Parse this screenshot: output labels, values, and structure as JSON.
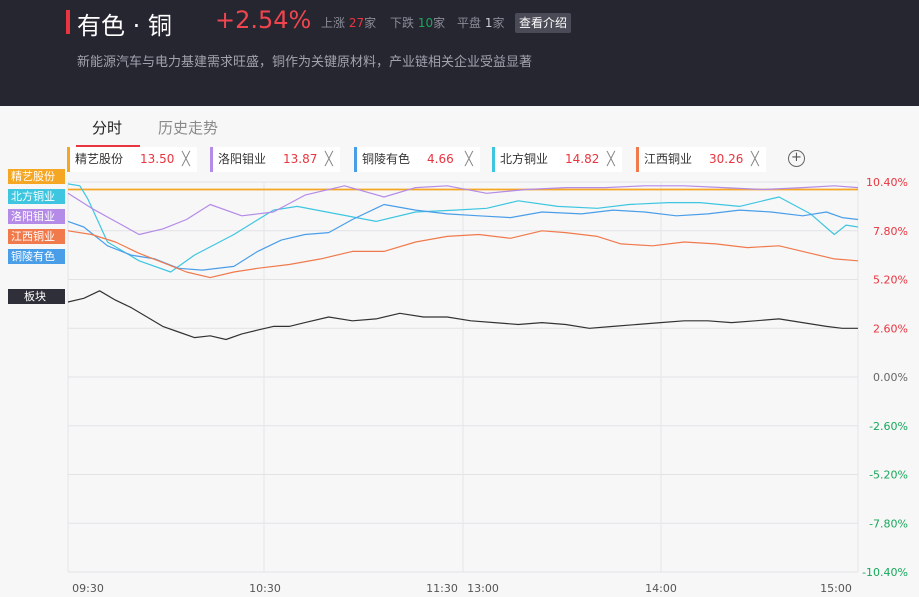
{
  "header": {
    "board_name": "有色 · 铜",
    "change": "+2.54%",
    "up_label": "上涨",
    "up_count": "27",
    "down_label": "下跌",
    "down_count": "10",
    "flat_label": "平盘",
    "flat_count": "1",
    "unit": "家",
    "intro_button": "查看介绍",
    "description": "新能源汽车与电力基建需求旺盛，铜作为关键原材料，产业链相关企业受益显著"
  },
  "tabs": [
    {
      "label": "分时",
      "active": true
    },
    {
      "label": "历史走势",
      "active": false
    }
  ],
  "stock_chips": [
    {
      "name": "精艺股份",
      "price": "13.50",
      "color": "#f5a623"
    },
    {
      "name": "洛阳钼业",
      "price": "13.87",
      "color": "#b48be6"
    },
    {
      "name": "铜陵有色",
      "price": "4.66",
      "color": "#4a9ee8"
    },
    {
      "name": "北方铜业",
      "price": "14.82",
      "color": "#3ec6e0"
    },
    {
      "name": "江西铜业",
      "price": "30.26",
      "color": "#f07a4c"
    }
  ],
  "chip_close": "╳",
  "add_button": "+",
  "legend_tags": [
    {
      "name": "精艺股份",
      "color": "#f5a623"
    },
    {
      "name": "北方铜业",
      "color": "#3ec6e0"
    },
    {
      "name": "洛阳钼业",
      "color": "#b48be6"
    },
    {
      "name": "江西铜业",
      "color": "#f07a4c"
    },
    {
      "name": "铜陵有色",
      "color": "#4a9ee8"
    }
  ],
  "board_tag": "板块",
  "chart_data": {
    "type": "line",
    "x_ticks": [
      "09:30",
      "10:30",
      "11:30",
      "13:00",
      "14:00",
      "15:00"
    ],
    "y_ticks": [
      "10.40%",
      "7.80%",
      "5.20%",
      "2.60%",
      "0.00%",
      "-2.60%",
      "-5.20%",
      "-7.80%",
      "-10.40%"
    ],
    "ylim": [
      -10.4,
      10.4
    ],
    "up_color": "#e8353f",
    "down_color": "#18a75b",
    "zero_color": "#666666",
    "grid": true,
    "series": [
      {
        "name": "精艺股份",
        "color": "#f5a623",
        "points": [
          [
            0,
            10.0
          ],
          [
            1,
            10.0
          ],
          [
            2,
            10.0
          ],
          [
            3,
            10.0
          ],
          [
            4,
            10.0
          ],
          [
            5,
            10.0
          ],
          [
            6,
            10.0
          ],
          [
            7,
            10.0
          ],
          [
            8,
            10.0
          ],
          [
            9,
            10.0
          ],
          [
            10,
            10.0
          ]
        ]
      },
      {
        "name": "北方铜业",
        "color": "#3ec6e0",
        "points": [
          [
            0,
            10.3
          ],
          [
            0.15,
            10.2
          ],
          [
            0.25,
            9.5
          ],
          [
            0.5,
            7.2
          ],
          [
            0.9,
            6.2
          ],
          [
            1.3,
            5.6
          ],
          [
            1.6,
            6.5
          ],
          [
            2.1,
            7.6
          ],
          [
            2.6,
            8.9
          ],
          [
            2.9,
            9.1
          ],
          [
            3.4,
            8.7
          ],
          [
            3.9,
            8.3
          ],
          [
            4.4,
            8.8
          ],
          [
            4.9,
            8.9
          ],
          [
            5.3,
            9.0
          ],
          [
            5.7,
            9.4
          ],
          [
            6.2,
            9.1
          ],
          [
            6.7,
            9.0
          ],
          [
            7.1,
            9.2
          ],
          [
            7.6,
            9.3
          ],
          [
            8.0,
            9.3
          ],
          [
            8.5,
            9.1
          ],
          [
            9.0,
            9.6
          ],
          [
            9.4,
            8.7
          ],
          [
            9.7,
            7.6
          ],
          [
            9.85,
            8.1
          ],
          [
            10,
            8.0
          ]
        ]
      },
      {
        "name": "洛阳钼业",
        "color": "#b48be6",
        "points": [
          [
            0,
            9.8
          ],
          [
            0.3,
            9.0
          ],
          [
            0.6,
            8.3
          ],
          [
            0.9,
            7.6
          ],
          [
            1.2,
            7.9
          ],
          [
            1.5,
            8.4
          ],
          [
            1.8,
            9.2
          ],
          [
            2.2,
            8.6
          ],
          [
            2.6,
            8.8
          ],
          [
            3.0,
            9.7
          ],
          [
            3.5,
            10.2
          ],
          [
            4.0,
            9.6
          ],
          [
            4.4,
            10.1
          ],
          [
            4.8,
            10.2
          ],
          [
            5.3,
            9.8
          ],
          [
            5.8,
            10.0
          ],
          [
            6.3,
            10.1
          ],
          [
            6.8,
            10.1
          ],
          [
            7.3,
            10.2
          ],
          [
            7.8,
            10.2
          ],
          [
            8.3,
            10.1
          ],
          [
            8.8,
            10.0
          ],
          [
            9.3,
            10.1
          ],
          [
            9.7,
            10.2
          ],
          [
            10,
            10.1
          ]
        ]
      },
      {
        "name": "铜陵有色",
        "color": "#4a9ee8",
        "points": [
          [
            0,
            8.3
          ],
          [
            0.2,
            8.0
          ],
          [
            0.5,
            7.0
          ],
          [
            0.8,
            6.5
          ],
          [
            1.1,
            6.3
          ],
          [
            1.4,
            5.8
          ],
          [
            1.7,
            5.7
          ],
          [
            2.1,
            5.9
          ],
          [
            2.4,
            6.7
          ],
          [
            2.7,
            7.3
          ],
          [
            3.0,
            7.6
          ],
          [
            3.3,
            7.7
          ],
          [
            3.6,
            8.4
          ],
          [
            4.0,
            9.2
          ],
          [
            4.4,
            8.9
          ],
          [
            4.8,
            8.7
          ],
          [
            5.2,
            8.6
          ],
          [
            5.6,
            8.5
          ],
          [
            6.0,
            8.8
          ],
          [
            6.5,
            8.7
          ],
          [
            6.9,
            8.9
          ],
          [
            7.3,
            8.8
          ],
          [
            7.7,
            8.6
          ],
          [
            8.1,
            8.7
          ],
          [
            8.5,
            8.9
          ],
          [
            8.9,
            8.8
          ],
          [
            9.3,
            8.6
          ],
          [
            9.6,
            8.8
          ],
          [
            9.8,
            8.5
          ],
          [
            10,
            8.4
          ]
        ]
      },
      {
        "name": "江西铜业",
        "color": "#f07a4c",
        "points": [
          [
            0,
            7.8
          ],
          [
            0.3,
            7.6
          ],
          [
            0.6,
            7.2
          ],
          [
            0.9,
            6.6
          ],
          [
            1.2,
            6.1
          ],
          [
            1.5,
            5.6
          ],
          [
            1.8,
            5.3
          ],
          [
            2.1,
            5.6
          ],
          [
            2.4,
            5.8
          ],
          [
            2.8,
            6.0
          ],
          [
            3.2,
            6.3
          ],
          [
            3.6,
            6.7
          ],
          [
            4.0,
            6.7
          ],
          [
            4.4,
            7.2
          ],
          [
            4.8,
            7.5
          ],
          [
            5.2,
            7.6
          ],
          [
            5.6,
            7.4
          ],
          [
            6.0,
            7.8
          ],
          [
            6.3,
            7.7
          ],
          [
            6.7,
            7.5
          ],
          [
            7.0,
            7.1
          ],
          [
            7.4,
            7.0
          ],
          [
            7.8,
            7.2
          ],
          [
            8.2,
            7.1
          ],
          [
            8.6,
            6.9
          ],
          [
            9.0,
            7.0
          ],
          [
            9.4,
            6.6
          ],
          [
            9.7,
            6.3
          ],
          [
            10,
            6.2
          ]
        ]
      },
      {
        "name": "板块",
        "color": "#333333",
        "points": [
          [
            0,
            4.0
          ],
          [
            0.2,
            4.2
          ],
          [
            0.4,
            4.6
          ],
          [
            0.6,
            4.1
          ],
          [
            0.8,
            3.7
          ],
          [
            1.0,
            3.2
          ],
          [
            1.2,
            2.7
          ],
          [
            1.4,
            2.4
          ],
          [
            1.6,
            2.1
          ],
          [
            1.8,
            2.2
          ],
          [
            2.0,
            2.0
          ],
          [
            2.2,
            2.3
          ],
          [
            2.4,
            2.5
          ],
          [
            2.6,
            2.7
          ],
          [
            2.8,
            2.7
          ],
          [
            3.0,
            2.9
          ],
          [
            3.3,
            3.2
          ],
          [
            3.6,
            3.0
          ],
          [
            3.9,
            3.1
          ],
          [
            4.2,
            3.4
          ],
          [
            4.5,
            3.2
          ],
          [
            4.8,
            3.2
          ],
          [
            5.1,
            3.0
          ],
          [
            5.4,
            2.9
          ],
          [
            5.7,
            2.8
          ],
          [
            6.0,
            2.9
          ],
          [
            6.3,
            2.8
          ],
          [
            6.6,
            2.6
          ],
          [
            6.9,
            2.7
          ],
          [
            7.2,
            2.8
          ],
          [
            7.5,
            2.9
          ],
          [
            7.8,
            3.0
          ],
          [
            8.1,
            3.0
          ],
          [
            8.4,
            2.9
          ],
          [
            8.7,
            3.0
          ],
          [
            9.0,
            3.1
          ],
          [
            9.3,
            2.9
          ],
          [
            9.6,
            2.7
          ],
          [
            9.8,
            2.6
          ],
          [
            10,
            2.6
          ]
        ]
      }
    ]
  }
}
